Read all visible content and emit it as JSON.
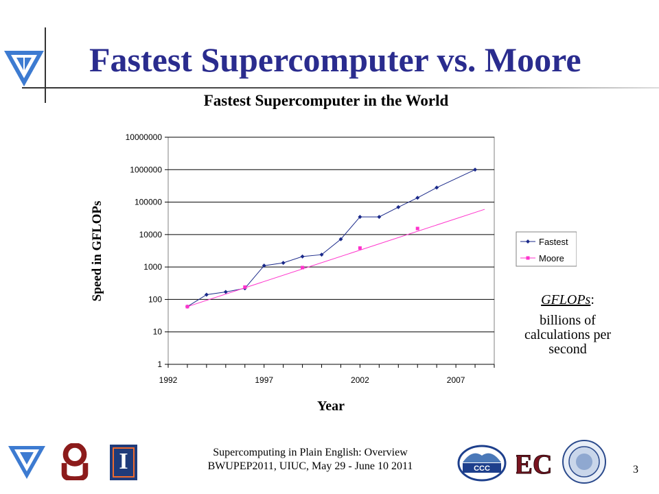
{
  "slide": {
    "title": "Fastest Supercomputer vs. Moore",
    "page_number": "3",
    "footer_line1": "Supercomputing in Plain English: Overview",
    "footer_line2": "BWUPEP2011, UIUC, May 29 - June 10 2011"
  },
  "note": {
    "term": "GFLOPs",
    "colon": ":",
    "definition_line1": "billions of",
    "definition_line2": "calculations per",
    "definition_line3": "second"
  },
  "logos": {
    "ou": "OU",
    "illinois": "I",
    "ccc": "CCC",
    "ec": "EC"
  },
  "chart_data": {
    "type": "line",
    "title": "Fastest Supercomputer in the World",
    "xlabel": "Year",
    "ylabel": "Speed in GFLOPs",
    "y_scale": "log",
    "ylim": [
      1,
      10000000
    ],
    "xlim": [
      1992,
      2009
    ],
    "x_ticks": [
      "1992",
      "1997",
      "2002",
      "2007"
    ],
    "y_ticks": [
      "1",
      "10",
      "100",
      "1000",
      "10000",
      "100000",
      "1000000",
      "10000000"
    ],
    "grid": "horizontal",
    "legend_position": "right",
    "series": [
      {
        "name": "Fastest",
        "color": "#1b2a8a",
        "marker": "diamond",
        "x": [
          1993,
          1994,
          1995,
          1996,
          1997,
          1998,
          1999,
          2000,
          2001,
          2002,
          2003,
          2004,
          2005,
          2006,
          2008
        ],
        "y": [
          60,
          140,
          170,
          220,
          1100,
          1340,
          2100,
          2400,
          7200,
          35000,
          35000,
          70000,
          136000,
          280000,
          1000000
        ]
      },
      {
        "name": "Moore",
        "color": "#ff33cc",
        "marker": "square",
        "x": [
          1993,
          1996,
          1999,
          2002,
          2005
        ],
        "y": [
          60,
          240,
          960,
          3840,
          15360
        ],
        "trend": {
          "x": [
            1993,
            2008.5
          ],
          "y": [
            60,
            60000
          ]
        }
      }
    ]
  }
}
